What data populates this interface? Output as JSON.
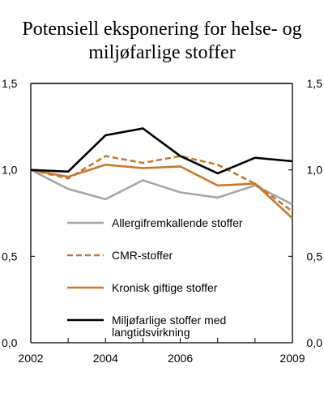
{
  "title_line1": "Potensiell eksponering for helse- og",
  "title_line2": "miljøfarlige stoffer",
  "chart_data": {
    "type": "line",
    "title": "Potensiell eksponering for helse- og miljøfarlige stoffer",
    "x": [
      2002,
      2003,
      2004,
      2005,
      2006,
      2007,
      2008,
      2009
    ],
    "x_tick_labels": [
      "2002",
      "2004",
      "2006",
      "2009"
    ],
    "y_tick_labels": [
      "0,0",
      "0,5",
      "1,0",
      "1,5"
    ],
    "y_ticks": [
      0.0,
      0.5,
      1.0,
      1.5
    ],
    "ylim": [
      0,
      1.5
    ],
    "xlim": [
      2002,
      2009
    ],
    "grid": "none",
    "legend_placement": "inside-bottom",
    "series": [
      {
        "name": "Allergifremkallende stoffer",
        "color": "#a6a6a6",
        "style": "solid",
        "values": [
          1.0,
          0.89,
          0.83,
          0.94,
          0.87,
          0.84,
          0.91,
          0.8
        ]
      },
      {
        "name": "CMR-stoffer",
        "color": "#c8782d",
        "style": "dashed",
        "values": [
          1.0,
          0.95,
          1.08,
          1.04,
          1.08,
          1.03,
          0.92,
          0.76
        ]
      },
      {
        "name": "Kronisk giftige stoffer",
        "color": "#c8782d",
        "style": "solid",
        "values": [
          1.0,
          0.96,
          1.03,
          1.01,
          1.02,
          0.91,
          0.92,
          0.72
        ]
      },
      {
        "name": "Miljøfarlige stoffer med langtidsvirkning",
        "name_lines": [
          "Miljøfarlige stoffer med",
          "langtidsvirkning"
        ],
        "color": "#000000",
        "style": "solid",
        "values": [
          1.0,
          0.99,
          1.2,
          1.24,
          1.08,
          0.98,
          1.07,
          1.05
        ]
      }
    ]
  }
}
